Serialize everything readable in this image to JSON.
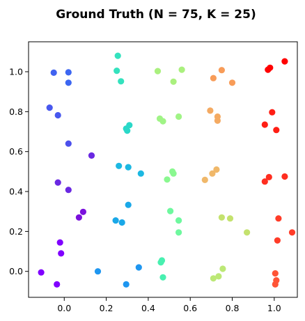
{
  "chart_data": {
    "type": "scatter",
    "title": "Ground Truth (N = 75, K = 25)",
    "xlabel": "",
    "ylabel": "",
    "xlim": [
      -0.17,
      1.11
    ],
    "ylim": [
      -0.13,
      1.15
    ],
    "xticks": [
      0.0,
      0.2,
      0.4,
      0.6,
      0.8,
      1.0
    ],
    "yticks": [
      0.0,
      0.2,
      0.4,
      0.6,
      0.8,
      1.0
    ],
    "xtick_labels": [
      "0.0",
      "0.2",
      "0.4",
      "0.6",
      "0.8",
      "1.0"
    ],
    "ytick_labels": [
      "0.0",
      "0.2",
      "0.4",
      "0.6",
      "0.8",
      "1.0"
    ],
    "grid": false,
    "colormap": "rainbow",
    "points": [
      {
        "x": -0.05,
        "y": 0.995,
        "color": "#4062f0"
      },
      {
        "x": 0.02,
        "y": 0.997,
        "color": "#3c66f1"
      },
      {
        "x": 0.02,
        "y": 0.945,
        "color": "#3c66f1"
      },
      {
        "x": -0.07,
        "y": 0.82,
        "color": "#4858ee"
      },
      {
        "x": -0.03,
        "y": 0.782,
        "color": "#4858ee"
      },
      {
        "x": 0.02,
        "y": 0.64,
        "color": "#4c50ec"
      },
      {
        "x": 0.13,
        "y": 0.58,
        "color": "#6a28e2"
      },
      {
        "x": -0.03,
        "y": 0.445,
        "color": "#6a28e2"
      },
      {
        "x": 0.02,
        "y": 0.408,
        "color": "#6a28e2"
      },
      {
        "x": 0.09,
        "y": 0.298,
        "color": "#7a10dc"
      },
      {
        "x": 0.07,
        "y": 0.27,
        "color": "#7a10dc"
      },
      {
        "x": -0.02,
        "y": 0.145,
        "color": "#8000ff"
      },
      {
        "x": -0.015,
        "y": 0.09,
        "color": "#8000ff"
      },
      {
        "x": -0.11,
        "y": -0.005,
        "color": "#8000ff"
      },
      {
        "x": -0.035,
        "y": -0.065,
        "color": "#8000ff"
      },
      {
        "x": 0.16,
        "y": 0.0,
        "color": "#1e96f0"
      },
      {
        "x": 0.355,
        "y": 0.02,
        "color": "#1e96f0"
      },
      {
        "x": 0.295,
        "y": -0.065,
        "color": "#1e96f0"
      },
      {
        "x": 0.245,
        "y": 0.255,
        "color": "#1aa8e8"
      },
      {
        "x": 0.275,
        "y": 0.245,
        "color": "#1aa8e8"
      },
      {
        "x": 0.305,
        "y": 0.333,
        "color": "#1aa8e8"
      },
      {
        "x": 0.26,
        "y": 0.528,
        "color": "#1cb8e2"
      },
      {
        "x": 0.305,
        "y": 0.522,
        "color": "#1cb8e2"
      },
      {
        "x": 0.365,
        "y": 0.49,
        "color": "#1cb8e2"
      },
      {
        "x": 0.295,
        "y": 0.715,
        "color": "#2ad8c8"
      },
      {
        "x": 0.3,
        "y": 0.705,
        "color": "#2ad8c8"
      },
      {
        "x": 0.31,
        "y": 0.732,
        "color": "#2ad8c8"
      },
      {
        "x": 0.255,
        "y": 1.08,
        "color": "#34e2be"
      },
      {
        "x": 0.25,
        "y": 1.005,
        "color": "#34e2be"
      },
      {
        "x": 0.27,
        "y": 0.952,
        "color": "#34e2be"
      },
      {
        "x": 0.46,
        "y": 0.045,
        "color": "#48f0b0"
      },
      {
        "x": 0.465,
        "y": 0.055,
        "color": "#48f0b0"
      },
      {
        "x": 0.47,
        "y": -0.03,
        "color": "#48f0b0"
      },
      {
        "x": 0.505,
        "y": 0.302,
        "color": "#6ef89e"
      },
      {
        "x": 0.545,
        "y": 0.255,
        "color": "#6ef89e"
      },
      {
        "x": 0.545,
        "y": 0.195,
        "color": "#6ef89e"
      },
      {
        "x": 0.49,
        "y": 0.46,
        "color": "#8af890"
      },
      {
        "x": 0.515,
        "y": 0.5,
        "color": "#8af890"
      },
      {
        "x": 0.52,
        "y": 0.49,
        "color": "#8af890"
      },
      {
        "x": 0.455,
        "y": 0.765,
        "color": "#a0f486"
      },
      {
        "x": 0.47,
        "y": 0.752,
        "color": "#a0f486"
      },
      {
        "x": 0.545,
        "y": 0.775,
        "color": "#a0f486"
      },
      {
        "x": 0.445,
        "y": 1.003,
        "color": "#aaf07e"
      },
      {
        "x": 0.52,
        "y": 0.95,
        "color": "#aaf07e"
      },
      {
        "x": 0.56,
        "y": 1.01,
        "color": "#aaf07e"
      },
      {
        "x": 0.755,
        "y": 0.013,
        "color": "#bce876"
      },
      {
        "x": 0.71,
        "y": -0.035,
        "color": "#bce876"
      },
      {
        "x": 0.735,
        "y": -0.025,
        "color": "#bce876"
      },
      {
        "x": 0.75,
        "y": 0.27,
        "color": "#c4e26e"
      },
      {
        "x": 0.79,
        "y": 0.265,
        "color": "#c4e26e"
      },
      {
        "x": 0.87,
        "y": 0.195,
        "color": "#c4e26e"
      },
      {
        "x": 0.67,
        "y": 0.458,
        "color": "#f0b86a"
      },
      {
        "x": 0.705,
        "y": 0.49,
        "color": "#f0b86a"
      },
      {
        "x": 0.725,
        "y": 0.51,
        "color": "#f0b86a"
      },
      {
        "x": 0.695,
        "y": 0.805,
        "color": "#f4aa62"
      },
      {
        "x": 0.73,
        "y": 0.775,
        "color": "#f4aa62"
      },
      {
        "x": 0.73,
        "y": 0.755,
        "color": "#f4aa62"
      },
      {
        "x": 0.71,
        "y": 0.968,
        "color": "#f89c58"
      },
      {
        "x": 0.75,
        "y": 1.008,
        "color": "#f89c58"
      },
      {
        "x": 0.8,
        "y": 0.945,
        "color": "#f89c58"
      },
      {
        "x": 1.005,
        "y": -0.01,
        "color": "#ff5436"
      },
      {
        "x": 1.005,
        "y": -0.065,
        "color": "#ff5436"
      },
      {
        "x": 1.01,
        "y": -0.045,
        "color": "#ff5436"
      },
      {
        "x": 1.02,
        "y": 0.265,
        "color": "#ff3c28"
      },
      {
        "x": 1.015,
        "y": 0.155,
        "color": "#ff3c28"
      },
      {
        "x": 1.085,
        "y": 0.195,
        "color": "#ff3c28"
      },
      {
        "x": 0.955,
        "y": 0.45,
        "color": "#ff2e20"
      },
      {
        "x": 0.975,
        "y": 0.472,
        "color": "#ff2e20"
      },
      {
        "x": 1.05,
        "y": 0.475,
        "color": "#ff2e20"
      },
      {
        "x": 0.955,
        "y": 0.735,
        "color": "#ff1e14"
      },
      {
        "x": 0.99,
        "y": 0.797,
        "color": "#ff1e14"
      },
      {
        "x": 1.01,
        "y": 0.708,
        "color": "#ff1e14"
      },
      {
        "x": 0.97,
        "y": 1.01,
        "color": "#ff0000"
      },
      {
        "x": 0.98,
        "y": 1.02,
        "color": "#ff0000"
      },
      {
        "x": 1.05,
        "y": 1.052,
        "color": "#ff0000"
      }
    ]
  }
}
